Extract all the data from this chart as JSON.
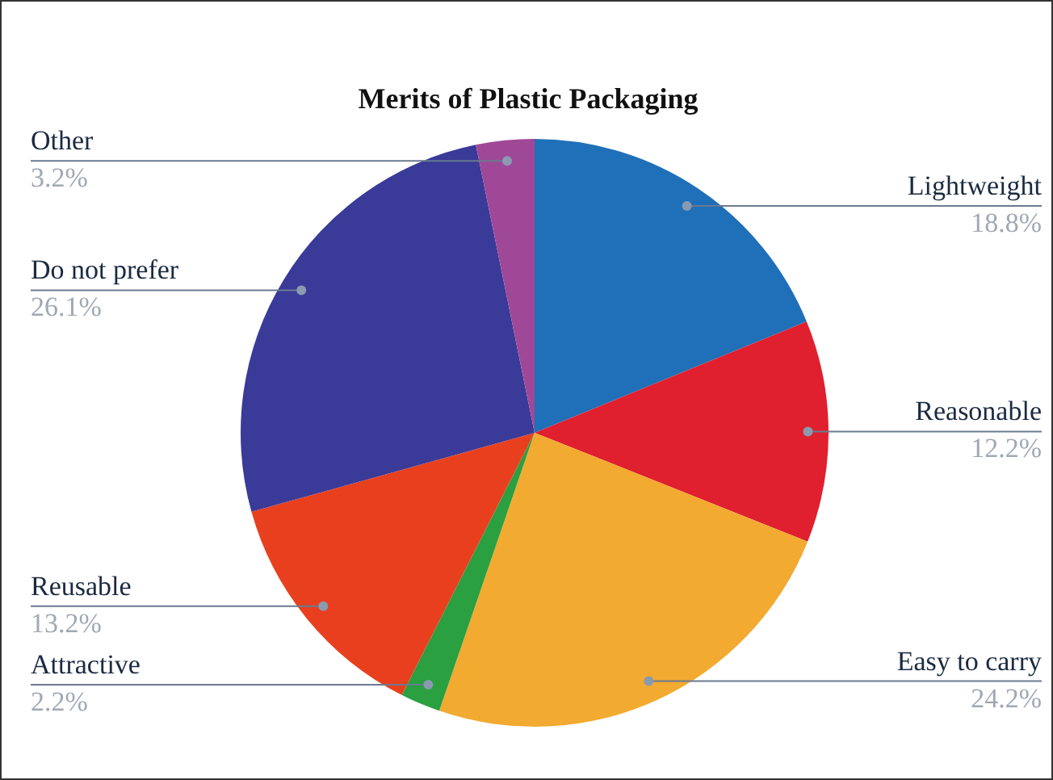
{
  "chart_data": {
    "type": "pie",
    "title": "Merits of Plastic Packaging",
    "categories": [
      "Lightweight",
      "Reasonable",
      "Easy to carry",
      "Attractive",
      "Reusable",
      "Do not prefer",
      "Other"
    ],
    "values": [
      18.8,
      12.2,
      24.2,
      2.2,
      13.2,
      26.1,
      3.2
    ],
    "value_labels": [
      "18.8%",
      "12.2%",
      "24.2%",
      "2.2%",
      "13.2%",
      "26.1%",
      "3.2%"
    ],
    "colors": [
      "#1f70b8",
      "#e0202e",
      "#f2aa30",
      "#2aa040",
      "#e8401e",
      "#3a3a98",
      "#a04898"
    ],
    "legend": false
  }
}
